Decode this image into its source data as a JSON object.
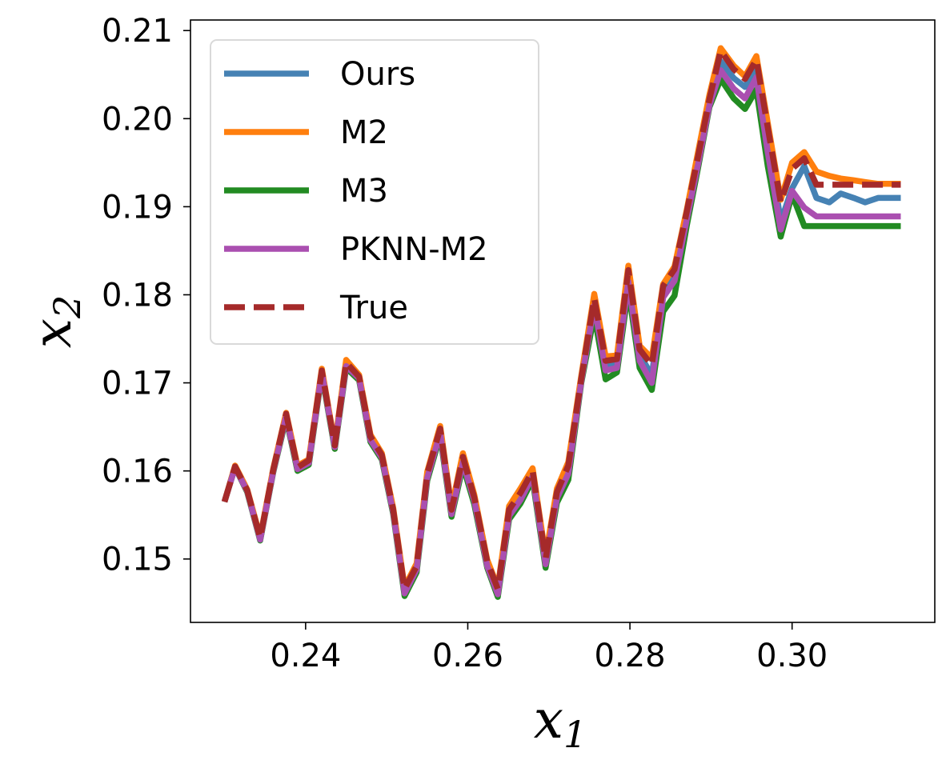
{
  "chart_data": {
    "type": "line",
    "xlabel": "x",
    "xlabel_sub": "1",
    "ylabel": "x",
    "ylabel_sub": "2",
    "xlim": [
      0.2258,
      0.3176
    ],
    "ylim": [
      0.1428,
      0.2112
    ],
    "xticks": [
      0.24,
      0.26,
      0.28,
      0.3
    ],
    "xtick_labels": [
      "0.24",
      "0.26",
      "0.28",
      "0.30"
    ],
    "yticks": [
      0.15,
      0.16,
      0.17,
      0.18,
      0.19,
      0.2,
      0.21
    ],
    "ytick_labels": [
      "0.15",
      "0.16",
      "0.17",
      "0.18",
      "0.19",
      "0.20",
      "0.21"
    ],
    "grid": false,
    "legend_position": "upper-left",
    "x": [
      0.23,
      0.2313,
      0.2328,
      0.2344,
      0.236,
      0.2376,
      0.239,
      0.2404,
      0.242,
      0.2436,
      0.245,
      0.2466,
      0.248,
      0.2494,
      0.2508,
      0.2522,
      0.2537,
      0.255,
      0.2566,
      0.258,
      0.2594,
      0.2608,
      0.2624,
      0.2637,
      0.2651,
      0.2665,
      0.268,
      0.2696,
      0.271,
      0.2724,
      0.274,
      0.2756,
      0.277,
      0.2784,
      0.2798,
      0.2812,
      0.2827,
      0.2841,
      0.2855,
      0.287,
      0.2884,
      0.2898,
      0.2912,
      0.2928,
      0.2942,
      0.2956,
      0.297,
      0.2986,
      0.3,
      0.3015,
      0.303,
      0.3046,
      0.306,
      0.3076,
      0.309,
      0.3106,
      0.312,
      0.3134
    ],
    "series": [
      {
        "name": "Ours",
        "color": "#4682b4",
        "dash": "solid",
        "values": [
          0.1565,
          0.1605,
          0.1577,
          0.1523,
          0.16,
          0.1663,
          0.1603,
          0.161,
          0.1713,
          0.1628,
          0.172,
          0.1706,
          0.1637,
          0.1617,
          0.1555,
          0.1463,
          0.149,
          0.1594,
          0.1645,
          0.1553,
          0.1613,
          0.1568,
          0.1494,
          0.1463,
          0.1552,
          0.157,
          0.1597,
          0.1497,
          0.1573,
          0.1603,
          0.1702,
          0.1792,
          0.172,
          0.1722,
          0.1823,
          0.1733,
          0.1708,
          0.1807,
          0.1827,
          0.1891,
          0.1952,
          0.2017,
          0.2065,
          0.2046,
          0.2036,
          0.2061,
          0.198,
          0.1883,
          0.1921,
          0.1946,
          0.191,
          0.1905,
          0.1915,
          0.191,
          0.1905,
          0.191,
          0.191,
          0.191
        ]
      },
      {
        "name": "M2",
        "color": "#ff7f0e",
        "dash": "solid",
        "values": [
          0.1565,
          0.1606,
          0.1579,
          0.1525,
          0.1602,
          0.1666,
          0.1606,
          0.1613,
          0.1716,
          0.163,
          0.1726,
          0.1709,
          0.1641,
          0.162,
          0.1558,
          0.1468,
          0.1495,
          0.1599,
          0.1651,
          0.1558,
          0.162,
          0.1573,
          0.1499,
          0.1468,
          0.156,
          0.158,
          0.1603,
          0.1503,
          0.158,
          0.161,
          0.1708,
          0.1801,
          0.173,
          0.1731,
          0.1833,
          0.1742,
          0.1728,
          0.1812,
          0.1832,
          0.1896,
          0.1962,
          0.2027,
          0.208,
          0.206,
          0.2048,
          0.2071,
          0.1995,
          0.1908,
          0.195,
          0.1962,
          0.194,
          0.1935,
          0.1932,
          0.193,
          0.1928,
          0.1926,
          0.1926,
          0.1926
        ]
      },
      {
        "name": "M3",
        "color": "#228b22",
        "dash": "solid",
        "values": [
          0.1565,
          0.1604,
          0.1576,
          0.1521,
          0.1598,
          0.166,
          0.16,
          0.1607,
          0.171,
          0.1625,
          0.1717,
          0.1703,
          0.1633,
          0.1613,
          0.1551,
          0.1458,
          0.1485,
          0.1589,
          0.164,
          0.1548,
          0.1606,
          0.1562,
          0.149,
          0.1457,
          0.1545,
          0.1563,
          0.159,
          0.149,
          0.1564,
          0.159,
          0.17,
          0.1777,
          0.1704,
          0.1712,
          0.1806,
          0.1717,
          0.1692,
          0.1781,
          0.1799,
          0.1878,
          0.1944,
          0.2013,
          0.2045,
          0.2023,
          0.2011,
          0.2033,
          0.1946,
          0.1866,
          0.1914,
          0.1878,
          0.1878,
          0.1878,
          0.1878,
          0.1878,
          0.1878,
          0.1878,
          0.1878,
          0.1878
        ]
      },
      {
        "name": "PKNN-M2",
        "color": "#aa4fb0",
        "dash": "solid",
        "values": [
          0.1565,
          0.1604,
          0.1577,
          0.1522,
          0.1599,
          0.1662,
          0.1602,
          0.1609,
          0.1712,
          0.1627,
          0.1719,
          0.1705,
          0.1635,
          0.1615,
          0.1553,
          0.1461,
          0.1488,
          0.1592,
          0.1643,
          0.1551,
          0.161,
          0.1566,
          0.1492,
          0.146,
          0.1549,
          0.1567,
          0.1594,
          0.1494,
          0.1569,
          0.1597,
          0.1702,
          0.1788,
          0.1714,
          0.1717,
          0.1815,
          0.1725,
          0.17,
          0.1797,
          0.1816,
          0.1885,
          0.1948,
          0.2015,
          0.2055,
          0.2034,
          0.2023,
          0.2047,
          0.1962,
          0.1874,
          0.1918,
          0.1899,
          0.1889,
          0.1889,
          0.1889,
          0.1889,
          0.1889,
          0.1889,
          0.1889,
          0.1889
        ]
      },
      {
        "name": "True",
        "color": "#a52a2a",
        "dash": "dashed",
        "values": [
          0.1565,
          0.1605,
          0.1578,
          0.1524,
          0.1601,
          0.1665,
          0.1604,
          0.1612,
          0.1714,
          0.1629,
          0.1723,
          0.1707,
          0.1639,
          0.1618,
          0.1556,
          0.1466,
          0.1492,
          0.1597,
          0.1648,
          0.1556,
          0.1616,
          0.157,
          0.1497,
          0.1466,
          0.1556,
          0.1575,
          0.16,
          0.15,
          0.1576,
          0.1606,
          0.1705,
          0.1796,
          0.1725,
          0.1727,
          0.1828,
          0.1738,
          0.172,
          0.181,
          0.1829,
          0.1894,
          0.1957,
          0.2022,
          0.2077,
          0.2056,
          0.2045,
          0.2067,
          0.199,
          0.1905,
          0.1943,
          0.1955,
          0.1925,
          0.1925,
          0.1925,
          0.1925,
          0.1925,
          0.1925,
          0.1925,
          0.1925
        ]
      }
    ]
  }
}
